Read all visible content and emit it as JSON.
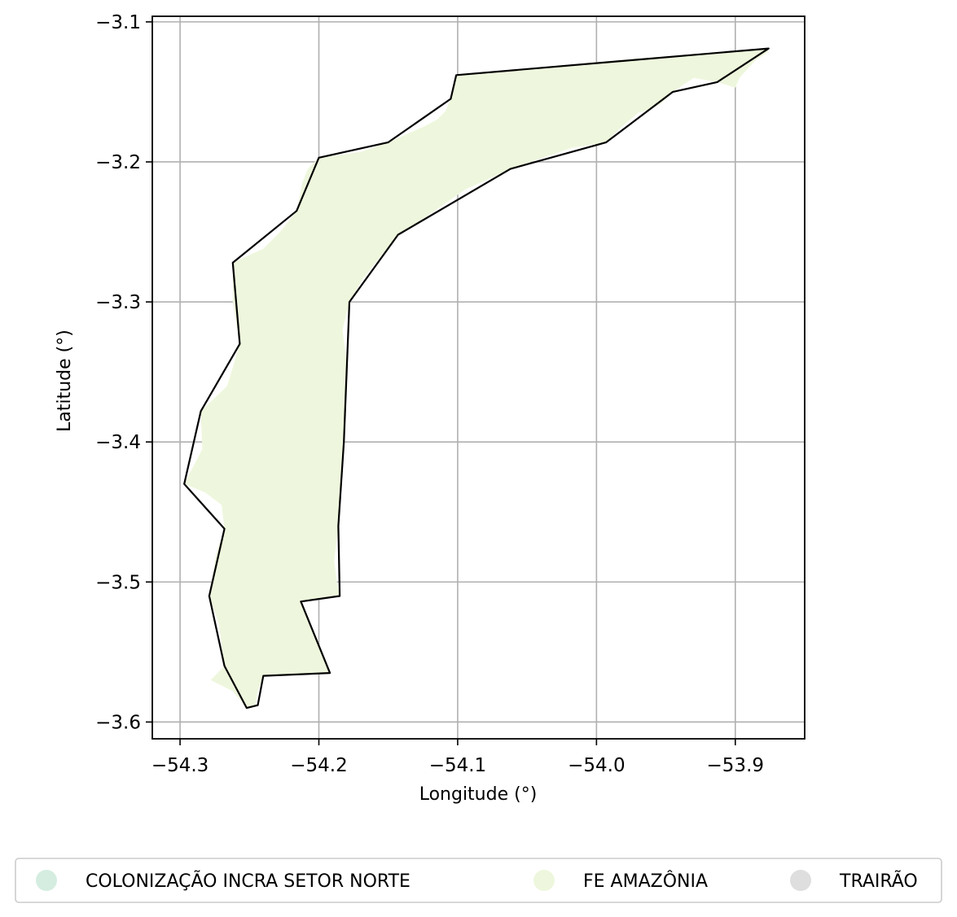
{
  "map": {
    "xlabel": "Longitude (°)",
    "ylabel": "Latitude (°)",
    "xlim": [
      -54.32,
      -53.85
    ],
    "ylim": [
      -3.612,
      -3.096
    ],
    "grid": true,
    "x_ticks": [
      -54.3,
      -54.2,
      -54.1,
      -54.0,
      -53.9
    ],
    "y_ticks": [
      -3.1,
      -3.2,
      -3.3,
      -3.4,
      -3.5,
      -3.6
    ],
    "x_tick_labels": [
      "−54.3",
      "−54.2",
      "−54.1",
      "−54.0",
      "−53.9"
    ],
    "y_tick_labels": [
      "−3.1",
      "−3.2",
      "−3.3",
      "−3.4",
      "−3.5",
      "−3.6"
    ],
    "boundary_color": "#000000",
    "grid_color": "#b0b0b0"
  },
  "legend": {
    "placement": "below plot",
    "items": [
      {
        "label": "COLONIZAÇÃO INCRA SETOR NORTE",
        "color": "#d4ede0"
      },
      {
        "label": "FE AMAZÔNIA",
        "color": "#eef7dd"
      },
      {
        "label": "TRAIRÃO",
        "color": "#dedede"
      }
    ]
  },
  "chart_data": {
    "type": "map",
    "xlabel": "Longitude (°)",
    "ylabel": "Latitude (°)",
    "xlim": [
      -54.32,
      -53.85
    ],
    "ylim": [
      -3.612,
      -3.096
    ],
    "grid": true,
    "legend_placement": "bottom",
    "series": [
      {
        "name": "FE AMAZÔNIA",
        "color": "#eef7dd",
        "region": [
          [
            -54.252,
            -3.59
          ],
          [
            -54.246,
            -3.588
          ],
          [
            -54.244,
            -3.578
          ],
          [
            -54.24,
            -3.567
          ],
          [
            -54.192,
            -3.565
          ],
          [
            -54.213,
            -3.514
          ],
          [
            -54.185,
            -3.51
          ],
          [
            -54.187,
            -3.5
          ],
          [
            -54.189,
            -3.485
          ],
          [
            -54.186,
            -3.46
          ],
          [
            -54.182,
            -3.4
          ],
          [
            -54.179,
            -3.35
          ],
          [
            -54.183,
            -3.32
          ],
          [
            -54.178,
            -3.3
          ],
          [
            -54.168,
            -3.283
          ],
          [
            -54.143,
            -3.252
          ],
          [
            -54.124,
            -3.24
          ],
          [
            -54.095,
            -3.22
          ],
          [
            -54.062,
            -3.205
          ],
          [
            -54.018,
            -3.19
          ],
          [
            -53.993,
            -3.186
          ],
          [
            -53.983,
            -3.176
          ],
          [
            -53.97,
            -3.165
          ],
          [
            -53.96,
            -3.162
          ],
          [
            -53.953,
            -3.158
          ],
          [
            -53.945,
            -3.15
          ],
          [
            -53.93,
            -3.14
          ],
          [
            -53.913,
            -3.143
          ],
          [
            -53.9,
            -3.147
          ],
          [
            -53.897,
            -3.14
          ],
          [
            -53.885,
            -3.127
          ],
          [
            -53.877,
            -3.122
          ],
          [
            -53.876,
            -3.119
          ],
          [
            -53.902,
            -3.121
          ],
          [
            -53.914,
            -3.122
          ],
          [
            -53.97,
            -3.126
          ],
          [
            -54.101,
            -3.138
          ],
          [
            -54.105,
            -3.155
          ],
          [
            -54.109,
            -3.164
          ],
          [
            -54.115,
            -3.17
          ],
          [
            -54.125,
            -3.175
          ],
          [
            -54.15,
            -3.186
          ],
          [
            -54.17,
            -3.193
          ],
          [
            -54.2,
            -3.197
          ],
          [
            -54.208,
            -3.205
          ],
          [
            -54.212,
            -3.215
          ],
          [
            -54.216,
            -3.235
          ],
          [
            -54.228,
            -3.25
          ],
          [
            -54.24,
            -3.262
          ],
          [
            -54.262,
            -3.272
          ],
          [
            -54.262,
            -3.3
          ],
          [
            -54.257,
            -3.33
          ],
          [
            -54.266,
            -3.36
          ],
          [
            -54.285,
            -3.378
          ],
          [
            -54.284,
            -3.405
          ],
          [
            -54.297,
            -3.43
          ],
          [
            -54.282,
            -3.436
          ],
          [
            -54.27,
            -3.445
          ],
          [
            -54.268,
            -3.462
          ],
          [
            -54.274,
            -3.48
          ],
          [
            -54.279,
            -3.51
          ],
          [
            -54.272,
            -3.53
          ],
          [
            -54.268,
            -3.56
          ],
          [
            -54.278,
            -3.57
          ],
          [
            -54.262,
            -3.578
          ],
          [
            -54.252,
            -3.59
          ]
        ]
      },
      {
        "name": "Boundary",
        "color": "#000000",
        "region": [
          [
            -54.252,
            -3.59
          ],
          [
            -54.244,
            -3.588
          ],
          [
            -54.24,
            -3.567
          ],
          [
            -54.192,
            -3.565
          ],
          [
            -54.213,
            -3.514
          ],
          [
            -54.185,
            -3.51
          ],
          [
            -54.186,
            -3.46
          ],
          [
            -54.182,
            -3.4
          ],
          [
            -54.178,
            -3.3
          ],
          [
            -54.143,
            -3.252
          ],
          [
            -54.062,
            -3.205
          ],
          [
            -53.993,
            -3.186
          ],
          [
            -53.945,
            -3.15
          ],
          [
            -53.913,
            -3.143
          ],
          [
            -53.876,
            -3.119
          ],
          [
            -54.101,
            -3.138
          ],
          [
            -54.105,
            -3.155
          ],
          [
            -54.15,
            -3.186
          ],
          [
            -54.2,
            -3.197
          ],
          [
            -54.216,
            -3.235
          ],
          [
            -54.262,
            -3.272
          ],
          [
            -54.257,
            -3.33
          ],
          [
            -54.285,
            -3.378
          ],
          [
            -54.297,
            -3.43
          ],
          [
            -54.268,
            -3.462
          ],
          [
            -54.279,
            -3.51
          ],
          [
            -54.268,
            -3.56
          ],
          [
            -54.252,
            -3.59
          ]
        ]
      }
    ]
  }
}
